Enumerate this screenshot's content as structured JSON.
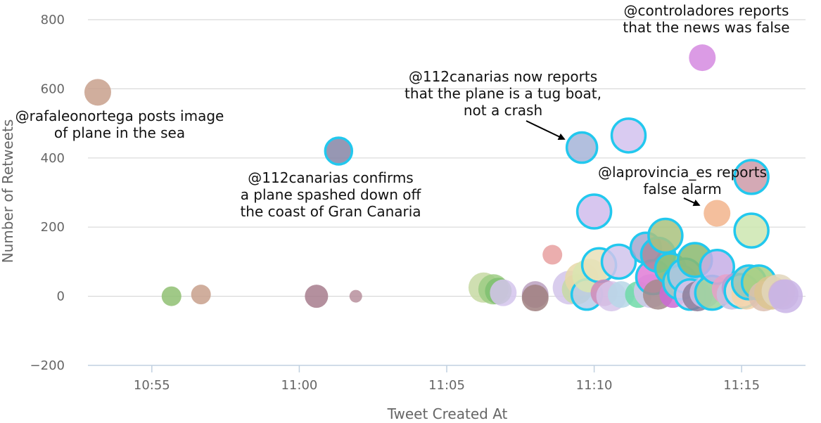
{
  "chart_data": {
    "type": "scatter",
    "title": "",
    "xlabel": "Tweet Created At",
    "ylabel": "Number of Retweets",
    "x_unit": "time (HH:MM:SS)",
    "xlim": [
      "10:52:50",
      "11:17:10"
    ],
    "ylim": [
      -200,
      800
    ],
    "y_ticks": [
      -200,
      0,
      200,
      400,
      600,
      800
    ],
    "y_tick_labels": [
      "−200",
      "0",
      "200",
      "400",
      "600",
      "800"
    ],
    "x_ticks": [
      "10:55:00",
      "11:00:00",
      "11:05:00",
      "11:10:00",
      "11:15:00"
    ],
    "x_tick_labels": [
      "10:55",
      "11:00",
      "11:05",
      "11:10",
      "11:15"
    ],
    "grid": "horizontal",
    "legend": "none",
    "highlight_color": "#22c8ee",
    "points": [
      {
        "x": "10:53:10",
        "y": 590,
        "size": 3,
        "color": "#c8a08c",
        "highlight": false
      },
      {
        "x": "10:55:40",
        "y": 0,
        "size": 2,
        "color": "#8fbf72",
        "highlight": false
      },
      {
        "x": "10:56:40",
        "y": 5,
        "size": 2,
        "color": "#c8a08c",
        "highlight": false
      },
      {
        "x": "11:00:35",
        "y": 0,
        "size": 2.5,
        "color": "#a77d8d",
        "highlight": false
      },
      {
        "x": "11:01:20",
        "y": 420,
        "size": 3,
        "color": "#8585a6",
        "highlight": true
      },
      {
        "x": "11:01:55",
        "y": 0,
        "size": 1,
        "color": "#b78f9c",
        "highlight": false
      },
      {
        "x": "11:06:15",
        "y": 25,
        "size": 3.5,
        "color": "#c7d9a3",
        "highlight": false
      },
      {
        "x": "11:06:35",
        "y": 20,
        "size": 3.5,
        "color": "#9ccc84",
        "highlight": false
      },
      {
        "x": "11:06:45",
        "y": 15,
        "size": 3,
        "color": "#7fbf70",
        "highlight": false
      },
      {
        "x": "11:06:55",
        "y": 10,
        "size": 3,
        "color": "#d4c4ec",
        "highlight": false
      },
      {
        "x": "11:08:00",
        "y": 5,
        "size": 3,
        "color": "#bba0bf",
        "highlight": false
      },
      {
        "x": "11:08:00",
        "y": -5,
        "size": 3,
        "color": "#a08080",
        "highlight": false
      },
      {
        "x": "11:08:35",
        "y": 120,
        "size": 2,
        "color": "#e7a0a0",
        "highlight": false
      },
      {
        "x": "11:09:10",
        "y": 25,
        "size": 4,
        "color": "#d2c4ea",
        "highlight": false
      },
      {
        "x": "11:09:25",
        "y": 20,
        "size": 3.5,
        "color": "#c7d9a3",
        "highlight": false
      },
      {
        "x": "11:09:35",
        "y": 50,
        "size": 4,
        "color": "#e8d8a8",
        "highlight": false
      },
      {
        "x": "11:09:45",
        "y": 5,
        "size": 3.5,
        "color": "#b8cce8",
        "highlight": true
      },
      {
        "x": "11:09:35",
        "y": 430,
        "size": 3.5,
        "color": "#a5b4d8",
        "highlight": true
      },
      {
        "x": "11:09:50",
        "y": 60,
        "size": 4,
        "color": "#d9e5b0",
        "highlight": false
      },
      {
        "x": "11:10:00",
        "y": 245,
        "size": 4,
        "color": "#d0bcec",
        "highlight": true
      },
      {
        "x": "11:10:10",
        "y": 90,
        "size": 4,
        "color": "#e8e0b8",
        "highlight": true
      },
      {
        "x": "11:10:20",
        "y": 10,
        "size": 3,
        "color": "#d08ab8",
        "highlight": false
      },
      {
        "x": "11:10:35",
        "y": 0,
        "size": 3.5,
        "color": "#d6c6ea",
        "highlight": false
      },
      {
        "x": "11:10:50",
        "y": 100,
        "size": 4,
        "color": "#d0c4ec",
        "highlight": true
      },
      {
        "x": "11:10:55",
        "y": 5,
        "size": 3,
        "color": "#b7d7e8",
        "highlight": false
      },
      {
        "x": "11:11:10",
        "y": 465,
        "size": 4,
        "color": "#d2c2ee",
        "highlight": true
      },
      {
        "x": "11:11:30",
        "y": 5,
        "size": 3,
        "color": "#6fd9a8",
        "highlight": false
      },
      {
        "x": "11:11:45",
        "y": 140,
        "size": 3.5,
        "color": "#a5a7cf",
        "highlight": true
      },
      {
        "x": "11:11:55",
        "y": 15,
        "size": 4,
        "color": "#d4c8ec",
        "highlight": false
      },
      {
        "x": "11:12:00",
        "y": 55,
        "size": 4,
        "color": "#e07bd6",
        "highlight": true
      },
      {
        "x": "11:12:10",
        "y": 5,
        "size": 3.5,
        "color": "#a58b8b",
        "highlight": false
      },
      {
        "x": "11:12:10",
        "y": 120,
        "size": 4,
        "color": "#a88b9c",
        "highlight": true
      },
      {
        "x": "11:12:25",
        "y": 175,
        "size": 4,
        "color": "#a9c27e",
        "highlight": true
      },
      {
        "x": "11:12:35",
        "y": 80,
        "size": 3.5,
        "color": "#86c578",
        "highlight": true
      },
      {
        "x": "11:12:40",
        "y": 5,
        "size": 3,
        "color": "#cc6ad5",
        "highlight": false
      },
      {
        "x": "11:12:55",
        "y": 40,
        "size": 4,
        "color": "#9ed2c4",
        "highlight": true
      },
      {
        "x": "11:13:05",
        "y": 60,
        "size": 4,
        "color": "#aac6e0",
        "highlight": true
      },
      {
        "x": "11:13:15",
        "y": 5,
        "size": 3.5,
        "color": "#d4c2ea",
        "highlight": true
      },
      {
        "x": "11:13:25",
        "y": 105,
        "size": 4,
        "color": "#89b86e",
        "highlight": true
      },
      {
        "x": "11:13:30",
        "y": 0,
        "size": 3.5,
        "color": "#8c7d99",
        "highlight": false
      },
      {
        "x": "11:13:40",
        "y": 690,
        "size": 3,
        "color": "#d58ae0",
        "highlight": false
      },
      {
        "x": "11:13:45",
        "y": 10,
        "size": 3.5,
        "color": "#ccc2e8",
        "highlight": false
      },
      {
        "x": "11:14:00",
        "y": 10,
        "size": 4,
        "color": "#9bd49a",
        "highlight": true
      },
      {
        "x": "11:14:10",
        "y": 85,
        "size": 4,
        "color": "#c5aee6",
        "highlight": true
      },
      {
        "x": "11:14:10",
        "y": 240,
        "size": 3,
        "color": "#f2b48c",
        "highlight": false
      },
      {
        "x": "11:14:30",
        "y": 20,
        "size": 3.5,
        "color": "#e8a0c8",
        "highlight": false
      },
      {
        "x": "11:14:40",
        "y": 5,
        "size": 3.5,
        "color": "#c8c0e0",
        "highlight": false
      },
      {
        "x": "11:14:50",
        "y": 25,
        "size": 3.5,
        "color": "#b79bd2",
        "highlight": false
      },
      {
        "x": "11:15:00",
        "y": 15,
        "size": 4,
        "color": "#e8e4d2",
        "highlight": true
      },
      {
        "x": "11:15:10",
        "y": 5,
        "size": 3.5,
        "color": "#f5d2a8",
        "highlight": false
      },
      {
        "x": "11:15:15",
        "y": 40,
        "size": 4,
        "color": "#98c4b4",
        "highlight": true
      },
      {
        "x": "11:15:20",
        "y": 190,
        "size": 4,
        "color": "#cce6b0",
        "highlight": true
      },
      {
        "x": "11:15:20",
        "y": 345,
        "size": 4,
        "color": "#cc9aa8",
        "highlight": true
      },
      {
        "x": "11:15:35",
        "y": 40,
        "size": 4,
        "color": "#a9d07f",
        "highlight": true
      },
      {
        "x": "11:15:45",
        "y": 0,
        "size": 3.5,
        "color": "#ddbfb0",
        "highlight": false
      },
      {
        "x": "11:16:00",
        "y": 10,
        "size": 4,
        "color": "#dcc690",
        "highlight": false
      },
      {
        "x": "11:16:15",
        "y": 15,
        "size": 4,
        "color": "#e2d6bc",
        "highlight": false
      },
      {
        "x": "11:16:25",
        "y": 5,
        "size": 3.5,
        "color": "#cfb4d4",
        "highlight": false
      },
      {
        "x": "11:16:30",
        "y": 0,
        "size": 4,
        "color": "#c9b4e6",
        "highlight": false
      }
    ],
    "annotations": [
      {
        "lines": [
          "@rafaleonortega posts image",
          "of plane in the sea"
        ],
        "arrow": false
      },
      {
        "lines": [
          "@112canarias confirms",
          "a plane spashed down off",
          "the coast of Gran Canaria"
        ],
        "arrow": false
      },
      {
        "lines": [
          "@112canarias now reports",
          "that the plane is a tug boat,",
          "not a crash"
        ],
        "arrow": true,
        "target": {
          "x": "11:09:35",
          "y": 430
        }
      },
      {
        "lines": [
          "@controladores reports",
          "that the news was false"
        ],
        "arrow": false
      },
      {
        "lines": [
          "@laprovincia_es reports",
          "false alarm"
        ],
        "arrow": true,
        "target": {
          "x": "11:14:10",
          "y": 240
        }
      }
    ]
  }
}
